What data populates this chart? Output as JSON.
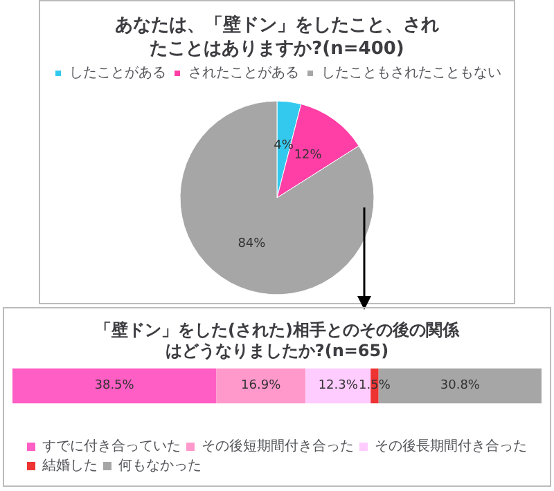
{
  "chart_data": [
    {
      "type": "pie",
      "title": "あなたは、「壁ドン」をしたこと、されたことはありますか?(n=400)",
      "categories": [
        "したことがある",
        "されたことがある",
        "したこともされたこともない"
      ],
      "values": [
        4,
        12,
        84
      ],
      "colors": [
        "#33c9ee",
        "#ff3fa6",
        "#a6a6a6"
      ],
      "value_labels": [
        "4%",
        "12%",
        "84%"
      ],
      "legend": "top"
    },
    {
      "type": "bar",
      "orientation": "horizontal",
      "stacked": true,
      "title": "「壁ドン」をした(された)相手とのその後の関係はどうなりましたか?(n=65)",
      "categories": [
        null
      ],
      "legend": "bottom",
      "series": [
        {
          "name": "すでに付き合っていた",
          "color": "#ff5ec4",
          "values": [
            38.5
          ],
          "value_labels": [
            "38.5%"
          ]
        },
        {
          "name": "その後短期間付き合った",
          "color": "#ff99cc",
          "values": [
            16.9
          ],
          "value_labels": [
            "16.9%"
          ]
        },
        {
          "name": "その後長期間付き合った",
          "color": "#ffccff",
          "values": [
            12.3
          ],
          "value_labels": [
            "12.3%"
          ]
        },
        {
          "name": "結婚した",
          "color": "#ee3333",
          "values": [
            1.5
          ],
          "value_labels": [
            "1.5%"
          ]
        },
        {
          "name": "何もなかった",
          "color": "#a6a6a6",
          "values": [
            30.8
          ],
          "value_labels": [
            "30.8%"
          ]
        }
      ]
    }
  ]
}
